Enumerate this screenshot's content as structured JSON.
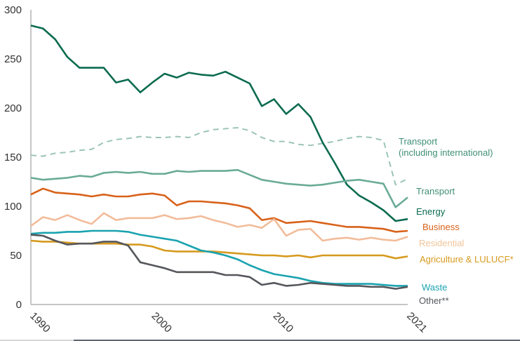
{
  "chart_data": {
    "type": "line",
    "title": "",
    "xlabel": "",
    "ylabel": "",
    "ylim": [
      0,
      300
    ],
    "xlim": [
      1990,
      2021
    ],
    "grid": false,
    "legend": "inline-right",
    "y_ticks": [
      "0",
      "50",
      "100",
      "150",
      "200",
      "250",
      "300"
    ],
    "y_tick_values": [
      0,
      50,
      100,
      150,
      200,
      250,
      300
    ],
    "x_ticks": [
      "1990",
      "2000",
      "2010",
      "2021"
    ],
    "x_tick_values": [
      1990,
      2000,
      2010,
      2021
    ],
    "x": [
      1990,
      1991,
      1992,
      1993,
      1994,
      1995,
      1996,
      1997,
      1998,
      1999,
      2000,
      2001,
      2002,
      2003,
      2004,
      2005,
      2006,
      2007,
      2008,
      2009,
      2010,
      2011,
      2012,
      2013,
      2014,
      2015,
      2016,
      2017,
      2018,
      2019,
      2020,
      2021
    ],
    "series": [
      {
        "name": "Transport (including international)",
        "label_lines": [
          "Transport",
          " (including international)"
        ],
        "color": "#9cc5b6",
        "dashed": true,
        "values": [
          152,
          151,
          154,
          155,
          157,
          158,
          165,
          168,
          169,
          171,
          170,
          170,
          171,
          170,
          175,
          178,
          179,
          180,
          177,
          170,
          166,
          166,
          163,
          162,
          164,
          166,
          169,
          171,
          170,
          167,
          122,
          128
        ]
      },
      {
        "name": "Energy",
        "label_lines": [
          "Energy"
        ],
        "color": "#0b6b4f",
        "dashed": false,
        "values": [
          284,
          281,
          270,
          252,
          241,
          241,
          241,
          226,
          229,
          216,
          226,
          235,
          231,
          236,
          234,
          233,
          237,
          231,
          225,
          202,
          209,
          194,
          204,
          191,
          165,
          144,
          122,
          111,
          104,
          96,
          85,
          87
        ]
      },
      {
        "name": "Transport",
        "label_lines": [
          "Transport"
        ],
        "color": "#6aab97",
        "dashed": false,
        "values": [
          129,
          127,
          128,
          129,
          131,
          130,
          134,
          135,
          134,
          135,
          133,
          133,
          136,
          135,
          136,
          136,
          136,
          137,
          132,
          127,
          125,
          123,
          122,
          121,
          122,
          124,
          126,
          127,
          125,
          123,
          99,
          109
        ]
      },
      {
        "name": "Business",
        "label_lines": [
          "Business"
        ],
        "color": "#d8621a",
        "dashed": false,
        "values": [
          112,
          118,
          114,
          113,
          112,
          110,
          112,
          110,
          110,
          112,
          113,
          111,
          101,
          105,
          105,
          104,
          103,
          101,
          98,
          86,
          88,
          83,
          84,
          85,
          83,
          81,
          79,
          79,
          78,
          77,
          74,
          75
        ]
      },
      {
        "name": "Residential",
        "label_lines": [
          "Residential"
        ],
        "color": "#f2bc9a",
        "dashed": false,
        "values": [
          80,
          89,
          86,
          91,
          86,
          82,
          93,
          86,
          88,
          88,
          88,
          91,
          87,
          88,
          90,
          86,
          83,
          79,
          81,
          78,
          87,
          70,
          76,
          77,
          65,
          67,
          68,
          66,
          68,
          66,
          65,
          69
        ]
      },
      {
        "name": "Agriculture & LULUCF*",
        "label_lines": [
          "Agriculture & LULUCF*"
        ],
        "color": "#d69a1e",
        "dashed": false,
        "values": [
          65,
          64,
          64,
          63,
          62,
          62,
          62,
          62,
          61,
          61,
          59,
          55,
          54,
          54,
          54,
          54,
          53,
          52,
          51,
          50,
          50,
          49,
          50,
          48,
          50,
          50,
          50,
          50,
          50,
          50,
          47,
          49
        ]
      },
      {
        "name": "Waste",
        "label_lines": [
          "Waste"
        ],
        "color": "#1aa3b0",
        "dashed": false,
        "values": [
          72,
          73,
          73,
          74,
          74,
          75,
          75,
          75,
          74,
          71,
          69,
          67,
          65,
          60,
          55,
          53,
          50,
          46,
          40,
          35,
          31,
          29,
          27,
          24,
          22,
          21,
          21,
          21,
          21,
          20,
          19,
          19
        ]
      },
      {
        "name": "Other**",
        "label_lines": [
          "Other**"
        ],
        "color": "#55575c",
        "dashed": false,
        "values": [
          71,
          70,
          65,
          61,
          62,
          62,
          64,
          64,
          60,
          43,
          40,
          37,
          33,
          33,
          33,
          33,
          30,
          30,
          28,
          20,
          22,
          19,
          20,
          22,
          21,
          20,
          19,
          19,
          18,
          18,
          16,
          18
        ]
      }
    ]
  }
}
